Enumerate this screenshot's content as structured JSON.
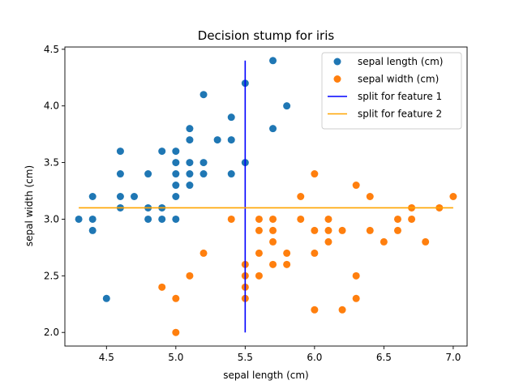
{
  "chart_data": {
    "type": "scatter",
    "title": "Decision stump for iris",
    "xlabel": "sepal length (cm)",
    "ylabel": "sepal width (cm)",
    "xlim": [
      4.2,
      7.1
    ],
    "ylim": [
      1.88,
      4.52
    ],
    "xticks": [
      "4.5",
      "5.0",
      "5.5",
      "6.0",
      "6.5",
      "7.0"
    ],
    "yticks": [
      "2.0",
      "2.5",
      "3.0",
      "3.5",
      "4.0",
      "4.5"
    ],
    "grid": false,
    "legend_position": "top-right",
    "series": [
      {
        "name": "sepal length (cm)",
        "kind": "scatter",
        "color": "#1f77b4",
        "points": [
          [
            4.3,
            3.0
          ],
          [
            4.4,
            3.0
          ],
          [
            4.4,
            2.9
          ],
          [
            4.4,
            3.2
          ],
          [
            4.5,
            2.3
          ],
          [
            4.6,
            3.6
          ],
          [
            4.6,
            3.4
          ],
          [
            4.6,
            3.2
          ],
          [
            4.6,
            3.1
          ],
          [
            4.7,
            3.2
          ],
          [
            4.8,
            3.4
          ],
          [
            4.8,
            3.1
          ],
          [
            4.8,
            3.0
          ],
          [
            4.9,
            3.6
          ],
          [
            4.9,
            3.1
          ],
          [
            4.9,
            3.0
          ],
          [
            5.0,
            3.6
          ],
          [
            5.0,
            3.5
          ],
          [
            5.0,
            3.4
          ],
          [
            5.0,
            3.3
          ],
          [
            5.0,
            3.2
          ],
          [
            5.0,
            3.0
          ],
          [
            5.1,
            3.8
          ],
          [
            5.1,
            3.7
          ],
          [
            5.1,
            3.5
          ],
          [
            5.1,
            3.4
          ],
          [
            5.1,
            3.3
          ],
          [
            5.2,
            4.1
          ],
          [
            5.2,
            3.5
          ],
          [
            5.2,
            3.4
          ],
          [
            5.3,
            3.7
          ],
          [
            5.4,
            3.9
          ],
          [
            5.4,
            3.7
          ],
          [
            5.4,
            3.4
          ],
          [
            5.5,
            4.2
          ],
          [
            5.5,
            3.5
          ],
          [
            5.7,
            4.4
          ],
          [
            5.7,
            3.8
          ],
          [
            5.8,
            4.0
          ]
        ]
      },
      {
        "name": "sepal width (cm)",
        "kind": "scatter",
        "color": "#ff7f0e",
        "points": [
          [
            4.9,
            2.4
          ],
          [
            5.0,
            2.3
          ],
          [
            5.0,
            2.0
          ],
          [
            5.1,
            2.5
          ],
          [
            5.2,
            2.7
          ],
          [
            5.4,
            3.0
          ],
          [
            5.5,
            2.6
          ],
          [
            5.5,
            2.5
          ],
          [
            5.5,
            2.4
          ],
          [
            5.5,
            2.3
          ],
          [
            5.6,
            3.0
          ],
          [
            5.6,
            2.9
          ],
          [
            5.6,
            2.7
          ],
          [
            5.6,
            2.5
          ],
          [
            5.7,
            3.0
          ],
          [
            5.7,
            2.9
          ],
          [
            5.7,
            2.8
          ],
          [
            5.7,
            2.6
          ],
          [
            5.8,
            2.7
          ],
          [
            5.8,
            2.6
          ],
          [
            5.9,
            3.2
          ],
          [
            5.9,
            3.0
          ],
          [
            6.0,
            3.4
          ],
          [
            6.0,
            2.9
          ],
          [
            6.0,
            2.7
          ],
          [
            6.0,
            2.2
          ],
          [
            6.1,
            3.0
          ],
          [
            6.1,
            2.9
          ],
          [
            6.1,
            2.8
          ],
          [
            6.2,
            2.9
          ],
          [
            6.2,
            2.2
          ],
          [
            6.3,
            3.3
          ],
          [
            6.3,
            2.5
          ],
          [
            6.3,
            2.3
          ],
          [
            6.4,
            3.2
          ],
          [
            6.4,
            2.9
          ],
          [
            6.5,
            2.8
          ],
          [
            6.6,
            3.0
          ],
          [
            6.6,
            2.9
          ],
          [
            6.7,
            3.1
          ],
          [
            6.7,
            3.0
          ],
          [
            6.8,
            2.8
          ],
          [
            6.9,
            3.1
          ],
          [
            7.0,
            3.2
          ]
        ]
      },
      {
        "name": "split for feature 1",
        "kind": "line",
        "color": "#0000ff",
        "points": [
          [
            5.5,
            2.0
          ],
          [
            5.5,
            4.4
          ]
        ]
      },
      {
        "name": "split for feature 2",
        "kind": "line",
        "color": "#ffa500",
        "points": [
          [
            4.3,
            3.1
          ],
          [
            7.0,
            3.1
          ]
        ]
      }
    ]
  }
}
